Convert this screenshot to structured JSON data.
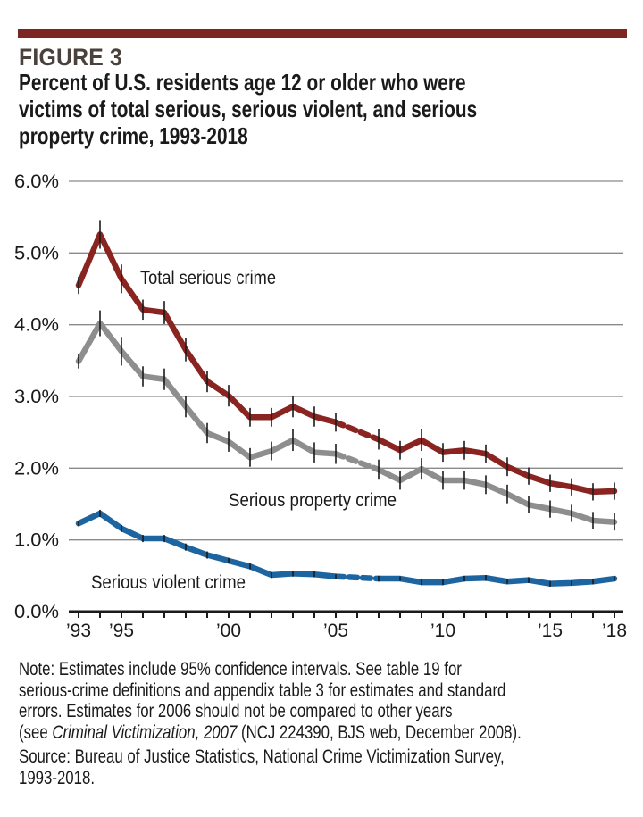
{
  "header": {
    "figure_label": "FIGURE 3",
    "title_lines": [
      "Percent of U.S. residents age 12 or older who were",
      "victims of total serious, serious violent, and serious",
      "property crime, 1993-2018"
    ]
  },
  "colors": {
    "accent_bar": "#7d2520",
    "total": "#8a2420",
    "property": "#8e8e8e",
    "violent": "#1c65a0",
    "grid": "#8a8a8a",
    "error_bar": "#1a1a1a"
  },
  "chart_data": {
    "type": "line",
    "title": "Percent of U.S. residents age 12 or older who were victims of total serious, serious violent, and serious property crime, 1993-2018",
    "xlabel": "",
    "ylabel": "",
    "x": [
      1993,
      1994,
      1995,
      1996,
      1997,
      1998,
      1999,
      2000,
      2001,
      2002,
      2003,
      2004,
      2005,
      2006,
      2007,
      2008,
      2009,
      2010,
      2011,
      2012,
      2013,
      2014,
      2015,
      2016,
      2017,
      2018
    ],
    "ylim": [
      0,
      6
    ],
    "yticks": [
      0,
      1,
      2,
      3,
      4,
      5,
      6
    ],
    "ytick_labels": [
      "0.0%",
      "1.0%",
      "2.0%",
      "3.0%",
      "4.0%",
      "5.0%",
      "6.0%"
    ],
    "xtick_years": [
      1993,
      1995,
      2000,
      2005,
      2010,
      2015,
      2018
    ],
    "xtick_labels": [
      "’93",
      "’95",
      "’00",
      "’05",
      "’10",
      "’15",
      "’18"
    ],
    "grid": true,
    "legend": "inline labels",
    "note_dashed": "2006 values not shown; segment 2005-2007 drawn dashed",
    "series": [
      {
        "name": "Total serious crime",
        "key": "total",
        "values": [
          4.55,
          5.26,
          4.64,
          4.21,
          4.17,
          3.65,
          3.21,
          3.01,
          2.71,
          2.71,
          2.86,
          2.72,
          2.64,
          null,
          2.4,
          2.25,
          2.39,
          2.22,
          2.25,
          2.2,
          2.02,
          1.89,
          1.79,
          1.74,
          1.67,
          1.68
        ],
        "ci_halfwidth": [
          0.12,
          0.2,
          0.2,
          0.14,
          0.16,
          0.16,
          0.15,
          0.15,
          0.13,
          0.13,
          0.15,
          0.14,
          0.13,
          null,
          0.14,
          0.13,
          0.15,
          0.13,
          0.13,
          0.13,
          0.13,
          0.12,
          0.12,
          0.12,
          0.12,
          0.12
        ]
      },
      {
        "name": "Serious property crime",
        "key": "property",
        "values": [
          3.49,
          4.02,
          3.63,
          3.28,
          3.24,
          2.86,
          2.49,
          2.37,
          2.15,
          2.24,
          2.39,
          2.22,
          2.2,
          null,
          1.98,
          1.83,
          1.99,
          1.83,
          1.83,
          1.77,
          1.64,
          1.49,
          1.43,
          1.37,
          1.27,
          1.25
        ],
        "ci_halfwidth": [
          0.1,
          0.18,
          0.2,
          0.14,
          0.15,
          0.15,
          0.14,
          0.14,
          0.13,
          0.13,
          0.15,
          0.14,
          0.14,
          null,
          0.14,
          0.13,
          0.15,
          0.13,
          0.13,
          0.13,
          0.13,
          0.12,
          0.12,
          0.12,
          0.12,
          0.12
        ]
      },
      {
        "name": "Serious violent crime",
        "key": "violent",
        "values": [
          1.23,
          1.37,
          1.16,
          1.02,
          1.02,
          0.9,
          0.79,
          0.71,
          0.63,
          0.51,
          0.53,
          0.52,
          0.49,
          null,
          0.46,
          0.46,
          0.41,
          0.41,
          0.46,
          0.47,
          0.42,
          0.44,
          0.39,
          0.4,
          0.42,
          0.46
        ],
        "ci_halfwidth": [
          0.04,
          0.05,
          0.05,
          0.05,
          0.05,
          0.05,
          0.05,
          0.04,
          0.04,
          0.04,
          0.04,
          0.04,
          0.03,
          null,
          0.04,
          0.03,
          0.04,
          0.04,
          0.04,
          0.04,
          0.03,
          0.04,
          0.04,
          0.03,
          0.04,
          0.03
        ]
      }
    ],
    "annotations": [
      {
        "text": "Total serious crime",
        "series": "total"
      },
      {
        "text": "Serious property crime",
        "series": "property"
      },
      {
        "text": "Serious violent crime",
        "series": "violent"
      }
    ]
  },
  "footer": {
    "note_lines": [
      {
        "plain": "Note: Estimates include 95% confidence intervals. See table 19 for"
      },
      {
        "plain": "serious-crime definitions and appendix table 3 for estimates and standard"
      },
      {
        "plain": "errors. Estimates for 2006 should not be compared to other years"
      },
      {
        "pre": "(see ",
        "italic": "Criminal Victimization, 2007",
        "post": " (NCJ 224390, BJS web, December 2008)."
      }
    ],
    "source_lines": [
      "Source: Bureau of Justice Statistics, National Crime Victimization Survey,",
      "1993-2018."
    ]
  }
}
